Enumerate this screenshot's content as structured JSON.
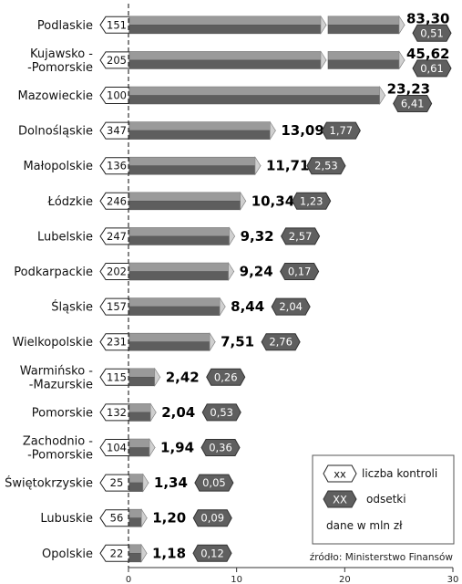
{
  "chart_data": {
    "type": "bar",
    "categories": [
      [
        "Podlaskie"
      ],
      [
        "Kujawsko -",
        "-Pomorskie"
      ],
      [
        "Mazowieckie"
      ],
      [
        "Dolnośląskie"
      ],
      [
        "Małopolskie"
      ],
      [
        "Łódzkie"
      ],
      [
        "Lubelskie"
      ],
      [
        "Podkarpackie"
      ],
      [
        "Śląskie"
      ],
      [
        "Wielkopolskie"
      ],
      [
        "Warmińsko -",
        "-Mazurskie"
      ],
      [
        "Pomorskie"
      ],
      [
        "Zachodnio -",
        "-Pomorskie"
      ],
      [
        "Świętokrzyskie"
      ],
      [
        "Lubuskie"
      ],
      [
        "Opolskie"
      ]
    ],
    "values": [
      83.3,
      45.62,
      23.23,
      13.09,
      11.71,
      10.34,
      9.32,
      9.24,
      8.44,
      7.51,
      2.42,
      2.04,
      1.94,
      1.34,
      1.2,
      1.18
    ],
    "value_labels": [
      "83,30",
      "45,62",
      "23,23",
      "13,09",
      "11,71",
      "10,34",
      "9,32",
      "9,24",
      "8,44",
      "7,51",
      "2,42",
      "2,04",
      "1,94",
      "1,34",
      "1,20",
      "1,18"
    ],
    "inspections": [
      "151",
      "205",
      "100",
      "347",
      "136",
      "246",
      "247",
      "202",
      "157",
      "231",
      "115",
      "132",
      "104",
      "25",
      "56",
      "22"
    ],
    "interest": [
      0.51,
      0.61,
      6.41,
      1.77,
      2.53,
      1.23,
      2.57,
      0.17,
      2.04,
      2.76,
      0.26,
      0.53,
      0.36,
      0.05,
      0.09,
      0.12
    ],
    "interest_labels": [
      "0,51",
      "0,61",
      "6,41",
      "1,77",
      "2,53",
      "1,23",
      "2,57",
      "0,17",
      "2,04",
      "2,76",
      "0,26",
      "0,53",
      "0,36",
      "0,05",
      "0,09",
      "0,12"
    ],
    "broken_axis": [
      true,
      true,
      false,
      false,
      false,
      false,
      false,
      false,
      false,
      false,
      false,
      false,
      false,
      false,
      false,
      false
    ],
    "xlim": [
      0,
      30
    ],
    "xticks": [
      "0",
      "10",
      "20",
      "30"
    ],
    "grid": false,
    "colors": {
      "bar_top": "#9a9a9a",
      "bar_bottom": "#5e5e5e",
      "interest_badge": "#5f5f5f",
      "text": "#111111"
    },
    "legend": {
      "position": "bottom-right",
      "inspections_badge": "xx",
      "inspections_label": "liczba kontroli",
      "interest_badge": "XX",
      "interest_label": "odsetki",
      "units": "dane w mln zł"
    },
    "source": "źródło: Ministerstwo Finansów"
  }
}
